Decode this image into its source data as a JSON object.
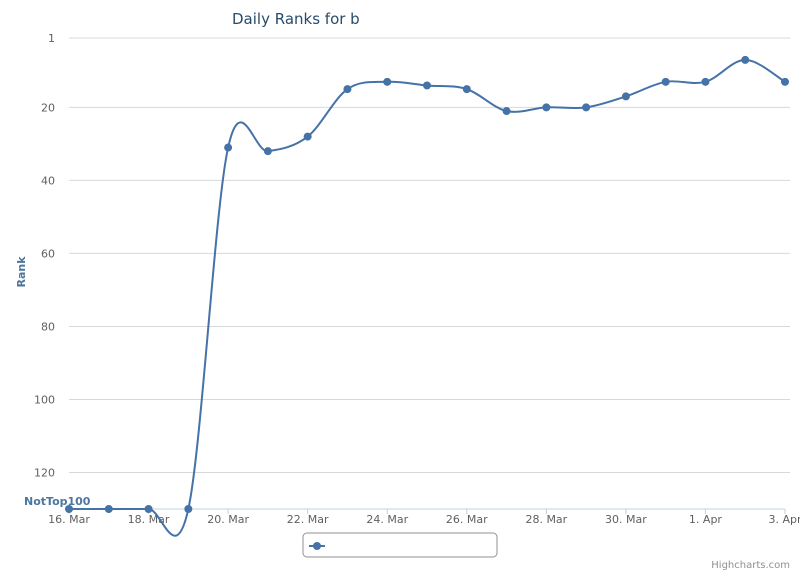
{
  "chart_data": {
    "type": "line",
    "title": "Daily Ranks for b",
    "ylabel": "Rank",
    "y_reversed": true,
    "ylim": [
      1,
      130
    ],
    "y_ticks": [
      "1",
      "20",
      "40",
      "60",
      "80",
      "100",
      "120"
    ],
    "y_tick_values": [
      1,
      20,
      40,
      60,
      80,
      100,
      120
    ],
    "bottom_label": "NotTop100",
    "x_ticks": [
      "16. Mar",
      "18. Mar",
      "20. Mar",
      "22. Mar",
      "24. Mar",
      "26. Mar",
      "28. Mar",
      "30. Mar",
      "1. Apr",
      "3. Apr"
    ],
    "x": [
      "16. Mar",
      "17. Mar",
      "18. Mar",
      "19. Mar",
      "20. Mar",
      "21. Mar",
      "22. Mar",
      "23. Mar",
      "24. Mar",
      "25. Mar",
      "26. Mar",
      "27. Mar",
      "28. Mar",
      "29. Mar",
      "30. Mar",
      "31. Mar",
      "1. Apr",
      "2. Apr",
      "3. Apr"
    ],
    "series": [
      {
        "values": [
          130,
          130,
          130,
          130,
          31,
          32,
          28,
          15,
          13,
          14,
          15,
          21,
          20,
          20,
          17,
          13,
          13,
          7,
          13
        ],
        "color": "#4572a7"
      }
    ],
    "grid": true,
    "legend_position": "bottom-center",
    "credits": "Highcharts.com"
  }
}
